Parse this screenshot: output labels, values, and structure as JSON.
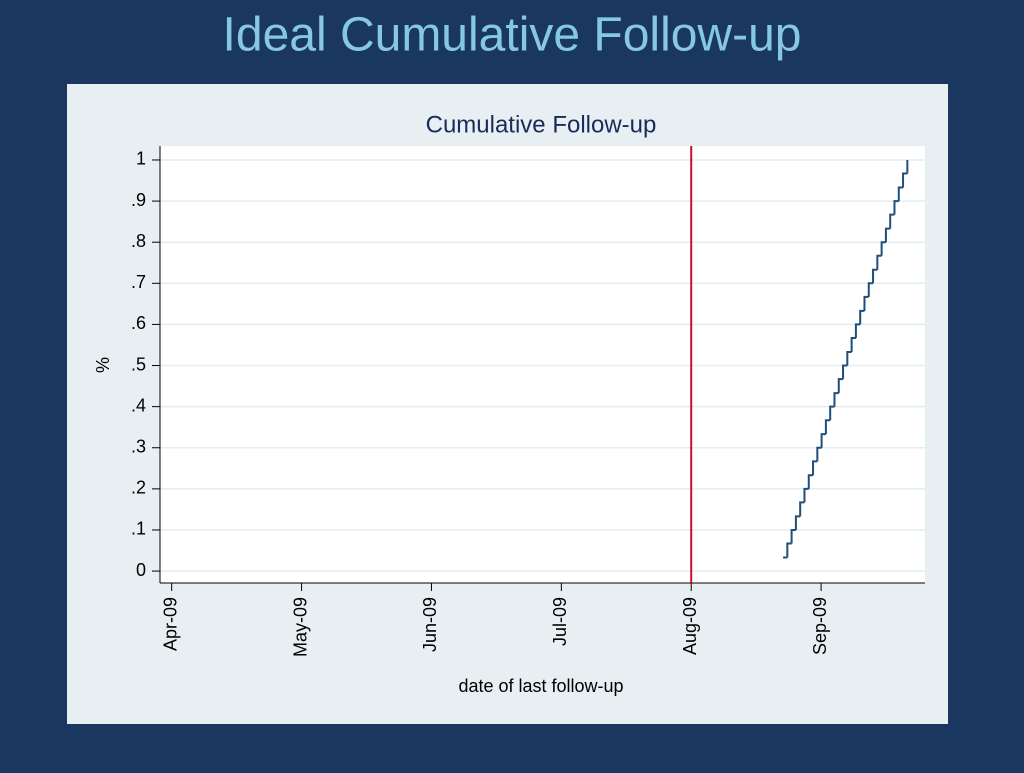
{
  "slide_title": "Ideal Cumulative Follow-up",
  "chart_data": {
    "type": "step",
    "title": "Cumulative Follow-up",
    "x_label": "date of last follow-up",
    "y_label": "%",
    "x": [
      4.707,
      4.74,
      4.773,
      4.806,
      4.839,
      4.872,
      4.905,
      4.938,
      4.971,
      5.004,
      5.037,
      5.07,
      5.103,
      5.136,
      5.169,
      5.202,
      5.235,
      5.268,
      5.301,
      5.334,
      5.367,
      5.4,
      5.433,
      5.466,
      5.499,
      5.532,
      5.565,
      5.598,
      5.631,
      5.664
    ],
    "values": [
      0.033,
      0.067,
      0.1,
      0.133,
      0.167,
      0.2,
      0.233,
      0.267,
      0.3,
      0.333,
      0.367,
      0.4,
      0.433,
      0.467,
      0.5,
      0.533,
      0.567,
      0.6,
      0.633,
      0.667,
      0.7,
      0.733,
      0.767,
      0.8,
      0.833,
      0.867,
      0.9,
      0.933,
      0.967,
      1
    ],
    "color": "#1f4e79",
    "vline": 4,
    "vline_color": "#c8102e",
    "xlim": [
      -0.09,
      5.8
    ],
    "xticks": [
      {
        "value": 0,
        "label": "Apr-09"
      },
      {
        "value": 1,
        "label": "May-09"
      },
      {
        "value": 2,
        "label": "Jun-09"
      },
      {
        "value": 3,
        "label": "Jul-09"
      },
      {
        "value": 4,
        "label": "Aug-09"
      },
      {
        "value": 5,
        "label": "Sep-09"
      }
    ],
    "ylim": [
      -0.029,
      1.034
    ],
    "yticks": [
      0,
      {
        "value": 0.1,
        "label": ".1"
      },
      {
        "value": 0.2,
        "label": ".2"
      },
      {
        "value": 0.3,
        "label": ".3"
      },
      {
        "value": 0.4,
        "label": ".4"
      },
      {
        "value": 0.5,
        "label": ".5"
      },
      {
        "value": 0.6,
        "label": ".6"
      },
      {
        "value": 0.7,
        "label": ".7"
      },
      {
        "value": 0.8,
        "label": ".8"
      },
      {
        "value": 0.9,
        "label": ".9"
      },
      1
    ],
    "grid": true
  }
}
